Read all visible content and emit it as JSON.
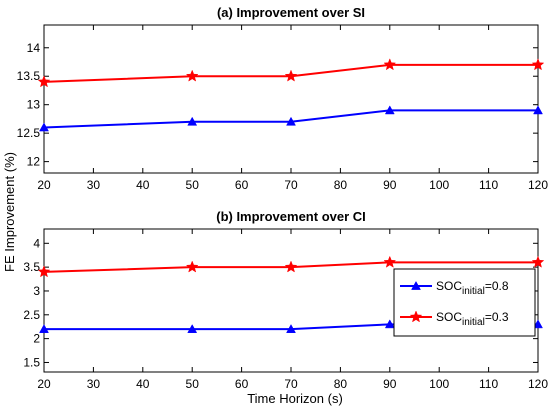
{
  "ylabel": "FE Improvement (%)",
  "xlabel": "Time Horizon (s)",
  "legend": {
    "entries": [
      {
        "base": "SOC",
        "sub": "initial",
        "suffix": "=0.8",
        "color": "#0000ff"
      },
      {
        "base": "SOC",
        "sub": "initial",
        "suffix": "=0.3",
        "color": "#ff0000"
      }
    ],
    "placement": "bottom-panel right"
  },
  "chart_data": [
    {
      "type": "line",
      "title": "(a) Improvement over SI",
      "x": [
        20,
        50,
        70,
        90,
        120
      ],
      "xlim": [
        20,
        120
      ],
      "xticks": [
        "20",
        "30",
        "40",
        "50",
        "60",
        "70",
        "80",
        "90",
        "100",
        "110",
        "120"
      ],
      "ylim": [
        11.8,
        14.4
      ],
      "yticks": [
        "12",
        "12.5",
        "13",
        "13.5",
        "14"
      ],
      "grid": false,
      "series": [
        {
          "name": "SOCinitial=0.8",
          "color": "#0000ff",
          "marker": "triangle",
          "values": [
            12.6,
            12.7,
            12.7,
            12.9,
            12.9
          ]
        },
        {
          "name": "SOCinitial=0.3",
          "color": "#ff0000",
          "marker": "star",
          "values": [
            13.4,
            13.5,
            13.5,
            13.7,
            13.7
          ]
        }
      ]
    },
    {
      "type": "line",
      "title": "(b) Improvement over CI",
      "x": [
        20,
        50,
        70,
        90,
        120
      ],
      "xlim": [
        20,
        120
      ],
      "xticks": [
        "20",
        "30",
        "40",
        "50",
        "60",
        "70",
        "80",
        "90",
        "100",
        "110",
        "120"
      ],
      "ylim": [
        1.3,
        4.3
      ],
      "yticks": [
        "1.5",
        "2",
        "2.5",
        "3",
        "3.5",
        "4"
      ],
      "grid": false,
      "series": [
        {
          "name": "SOCinitial=0.8",
          "color": "#0000ff",
          "marker": "triangle",
          "values": [
            2.2,
            2.2,
            2.2,
            2.3,
            2.3
          ]
        },
        {
          "name": "SOCinitial=0.3",
          "color": "#ff0000",
          "marker": "star",
          "values": [
            3.4,
            3.5,
            3.5,
            3.6,
            3.6
          ]
        }
      ]
    }
  ]
}
